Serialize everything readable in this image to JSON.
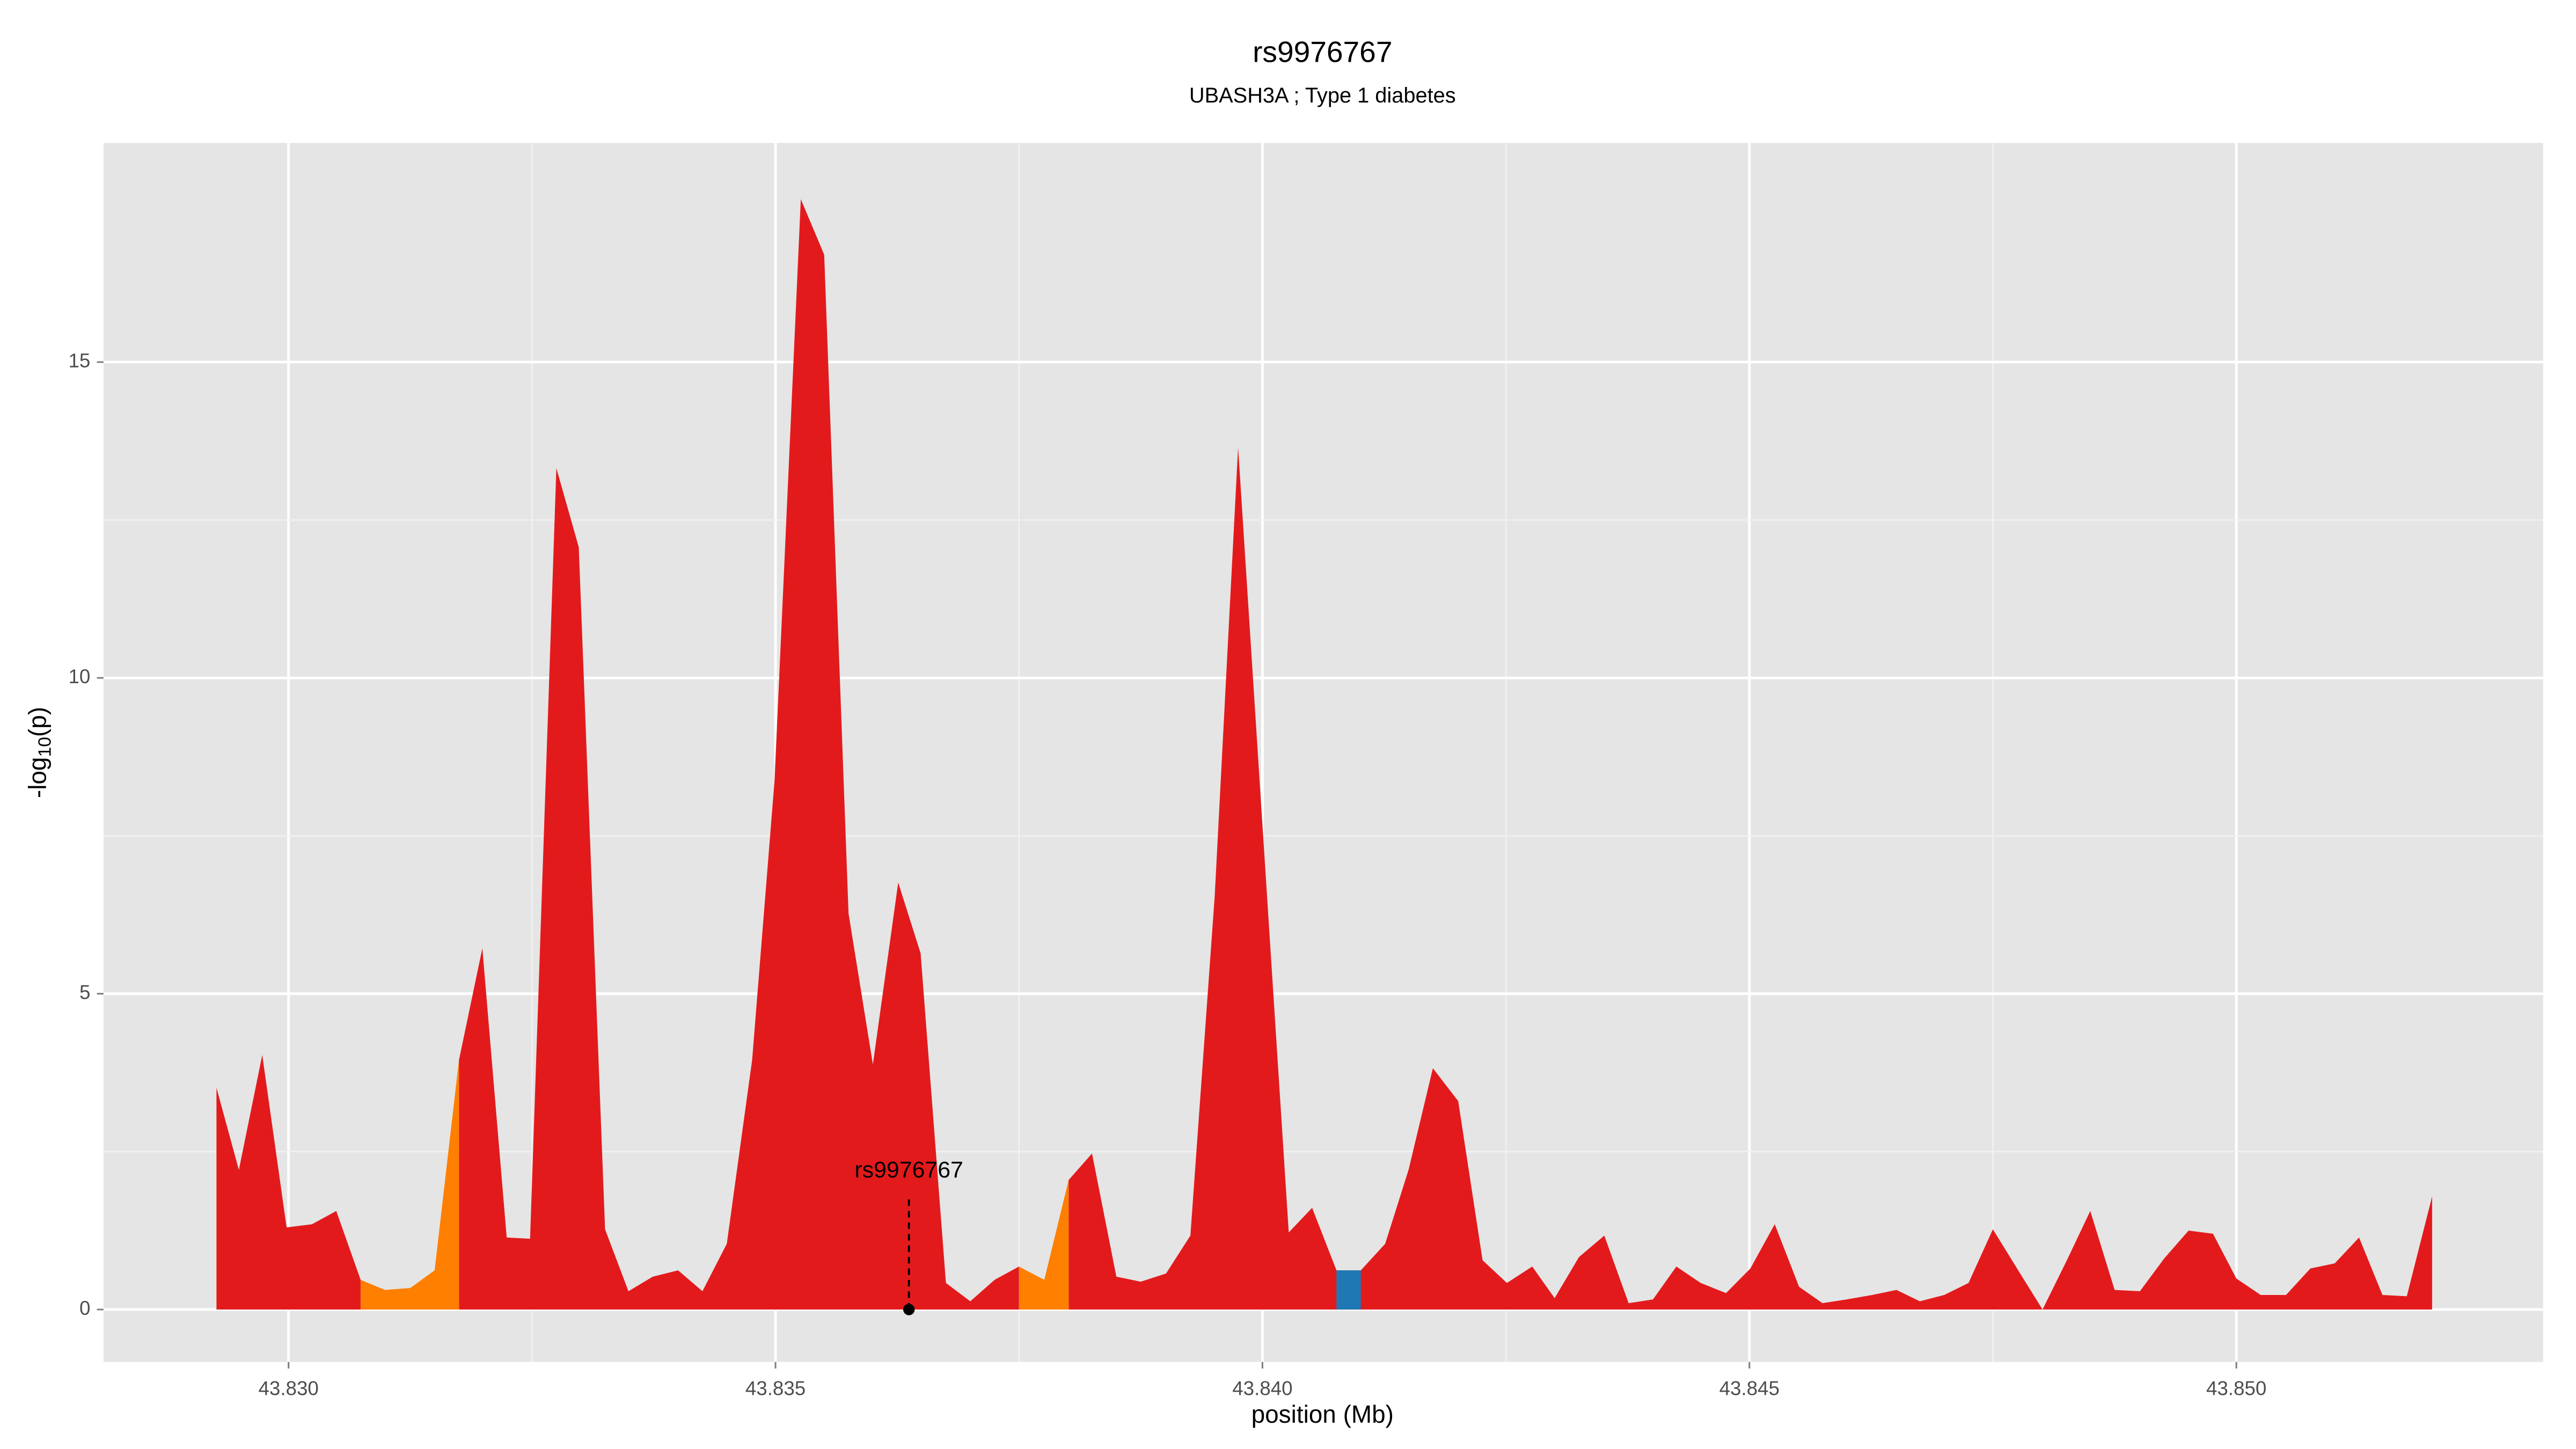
{
  "chart_data": {
    "type": "area",
    "title": "rs9976767",
    "subtitle": "UBASH3A ; Type 1 diabetes",
    "xlabel": "position (Mb)",
    "ylabel": {
      "main": "-log",
      "sub": "10",
      "rest": "(p)"
    },
    "xlim": [
      43.8281,
      43.85315
    ],
    "ylim": [
      -0.83,
      18.47
    ],
    "xticks": [
      {
        "value": 43.83,
        "label": "43.830"
      },
      {
        "value": 43.835,
        "label": "43.835"
      },
      {
        "value": 43.84,
        "label": "43.840"
      },
      {
        "value": 43.845,
        "label": "43.845"
      },
      {
        "value": 43.85,
        "label": "43.850"
      }
    ],
    "yticks": [
      0,
      5,
      10,
      15
    ],
    "grid": true,
    "x": [
      43.82926,
      43.82949,
      43.82973,
      43.82998,
      43.83024,
      43.83049,
      43.83074,
      43.83099,
      43.83125,
      43.8315,
      43.83175,
      43.83199,
      43.83224,
      43.83248,
      43.83275,
      43.83298,
      43.83325,
      43.83349,
      43.83374,
      43.834,
      43.83425,
      43.8345,
      43.83476,
      43.83499,
      43.83526,
      43.8355,
      43.83575,
      43.836,
      43.83626,
      43.83649,
      43.83675,
      43.837,
      43.83725,
      43.8375,
      43.83776,
      43.83801,
      43.83825,
      43.8385,
      43.83875,
      43.83901,
      43.83926,
      43.83951,
      43.83975,
      43.84,
      43.84027,
      43.84051,
      43.84076,
      43.84101,
      43.84126,
      43.8415,
      43.84175,
      43.84201,
      43.84226,
      43.84251,
      43.84277,
      43.843,
      43.84325,
      43.84351,
      43.84376,
      43.84401,
      43.84425,
      43.8445,
      43.84476,
      43.84501,
      43.84526,
      43.84551,
      43.84575,
      43.846,
      43.84626,
      43.84651,
      43.84675,
      43.847,
      43.84725,
      43.8475,
      43.84776,
      43.84801,
      43.84826,
      43.8485,
      43.84875,
      43.84901,
      43.84926,
      43.84951,
      43.84976,
      43.85,
      43.85025,
      43.85051,
      43.85076,
      43.85101,
      43.85126,
      43.8515,
      43.85175,
      43.85201
    ],
    "series": [
      {
        "color": "#e31a1c",
        "values": [
          3.51,
          2.21,
          4.03,
          1.3,
          1.35,
          1.56,
          0.47,
          null,
          null,
          null,
          3.95,
          5.72,
          1.14,
          1.12,
          13.32,
          12.07,
          1.27,
          0.29,
          0.52,
          0.62,
          0.29,
          1.04,
          3.95,
          8.37,
          17.58,
          16.7,
          6.27,
          3.88,
          6.76,
          5.64,
          0.42,
          0.13,
          0.47,
          0.68,
          null,
          2.05,
          2.47,
          0.52,
          0.44,
          0.57,
          1.17,
          6.55,
          13.65,
          7.67,
          1.22,
          1.61,
          0.62,
          0.62,
          1.04,
          2.21,
          3.82,
          3.3,
          0.78,
          0.42,
          0.68,
          0.18,
          0.83,
          1.17,
          0.1,
          0.16,
          0.68,
          0.42,
          0.26,
          0.65,
          1.35,
          0.36,
          0.1,
          0.16,
          0.23,
          0.31,
          0.13,
          0.23,
          0.42,
          1.27,
          0.62,
          0.0,
          0.78,
          1.56,
          0.31,
          0.29,
          0.81,
          1.25,
          1.2,
          0.49,
          0.23,
          0.23,
          0.65,
          0.73,
          1.14,
          0.23,
          0.21,
          1.79
        ]
      },
      {
        "color": "#ff7f00",
        "values": [
          null,
          null,
          null,
          null,
          null,
          null,
          0.47,
          0.31,
          0.34,
          0.62,
          3.95,
          null,
          null,
          null,
          null,
          null,
          null,
          null,
          null,
          null,
          null,
          null,
          null,
          null,
          null,
          null,
          null,
          null,
          null,
          null,
          null,
          null,
          null,
          0.68,
          0.47,
          2.05,
          null,
          null,
          null,
          null,
          null,
          null,
          null,
          null,
          null,
          null,
          null,
          null,
          null,
          null,
          null,
          null,
          null,
          null,
          null,
          null,
          null,
          null,
          null,
          null,
          null,
          null,
          null,
          null,
          null,
          null,
          null,
          null,
          null,
          null,
          null,
          null,
          null,
          null,
          null,
          null,
          null,
          null,
          null,
          null,
          null,
          null,
          null,
          null,
          null,
          null,
          null,
          null,
          null,
          null,
          null,
          null
        ]
      },
      {
        "color": "#1f78b4",
        "values": [
          null,
          null,
          null,
          null,
          null,
          null,
          null,
          null,
          null,
          null,
          null,
          null,
          null,
          null,
          null,
          null,
          null,
          null,
          null,
          null,
          null,
          null,
          null,
          null,
          null,
          null,
          null,
          null,
          null,
          null,
          null,
          null,
          null,
          null,
          null,
          null,
          null,
          null,
          null,
          null,
          null,
          null,
          null,
          null,
          null,
          null,
          0.62,
          0.62,
          null,
          null,
          null,
          null,
          null,
          null,
          null,
          null,
          null,
          null,
          null,
          null,
          null,
          null,
          null,
          null,
          null,
          null,
          null,
          null,
          null,
          null,
          null,
          null,
          null,
          null,
          null,
          null,
          null,
          null,
          null,
          null,
          null,
          null,
          null,
          null,
          null,
          null,
          null,
          null,
          null,
          null,
          null,
          null
        ]
      }
    ],
    "annotation": {
      "text": "rs9976767",
      "x": 43.83637,
      "y": 0
    }
  }
}
